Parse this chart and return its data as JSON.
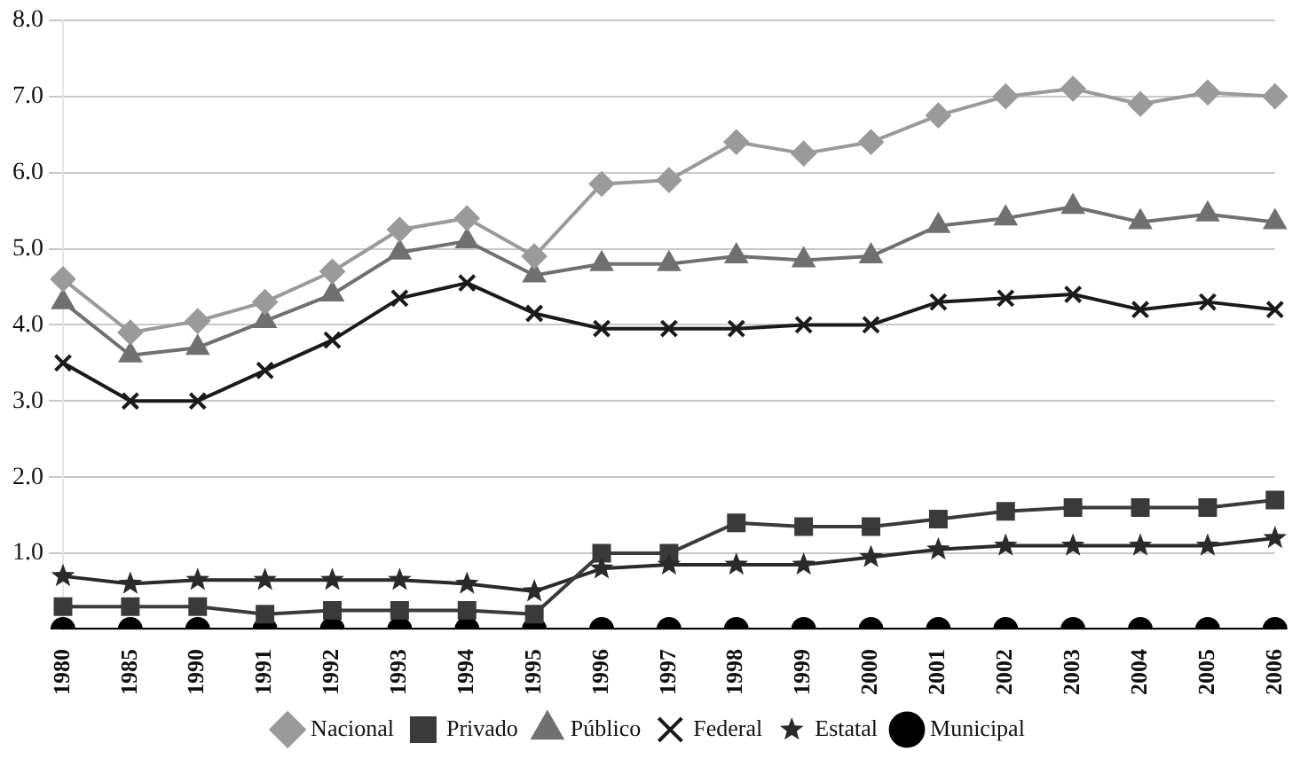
{
  "chart_data": {
    "type": "line",
    "categories": [
      "1980",
      "1985",
      "1990",
      "1991",
      "1992",
      "1993",
      "1994",
      "1995",
      "1996",
      "1997",
      "1998",
      "1999",
      "2000",
      "2001",
      "2002",
      "2003",
      "2004",
      "2005",
      "2006"
    ],
    "ylim": [
      0,
      8
    ],
    "yticks": [
      {
        "value": 1,
        "label": "1.0"
      },
      {
        "value": 2,
        "label": "2.0"
      },
      {
        "value": 3,
        "label": "3.0"
      },
      {
        "value": 4,
        "label": "4.0"
      },
      {
        "value": 5,
        "label": "5.0"
      },
      {
        "value": 6,
        "label": "6.0"
      },
      {
        "value": 7,
        "label": "7.0"
      },
      {
        "value": 8,
        "label": "8.0"
      }
    ],
    "grid": "y",
    "legend": "bottom",
    "line_style": "solid",
    "series": [
      {
        "name": "Nacional",
        "color": "#9a9a9a",
        "marker": "diamond",
        "values": [
          4.6,
          3.9,
          4.05,
          4.3,
          4.7,
          5.25,
          5.4,
          4.9,
          5.85,
          5.9,
          6.4,
          6.25,
          6.4,
          6.75,
          7.0,
          7.1,
          6.9,
          7.05,
          7.0
        ]
      },
      {
        "name": "Privado",
        "color": "#3a3a3a",
        "marker": "square",
        "values": [
          0.3,
          0.3,
          0.3,
          0.2,
          0.25,
          0.25,
          0.25,
          0.2,
          1.0,
          1.0,
          1.4,
          1.35,
          1.35,
          1.45,
          1.55,
          1.6,
          1.6,
          1.6,
          1.7
        ]
      },
      {
        "name": "Público",
        "color": "#707070",
        "marker": "triangle",
        "values": [
          4.3,
          3.6,
          3.7,
          4.05,
          4.4,
          4.95,
          5.1,
          4.65,
          4.8,
          4.8,
          4.9,
          4.85,
          4.9,
          5.3,
          5.4,
          5.55,
          5.35,
          5.45,
          5.35
        ]
      },
      {
        "name": "Federal",
        "color": "#1a1a1a",
        "marker": "cross",
        "values": [
          3.5,
          3.0,
          3.0,
          3.4,
          3.8,
          4.35,
          4.55,
          4.15,
          3.95,
          3.95,
          3.95,
          4.0,
          4.0,
          4.3,
          4.35,
          4.4,
          4.2,
          4.3,
          4.2
        ]
      },
      {
        "name": "Estatal",
        "color": "#2a2a2a",
        "marker": "star",
        "values": [
          0.7,
          0.6,
          0.65,
          0.65,
          0.65,
          0.65,
          0.6,
          0.5,
          0.8,
          0.85,
          0.85,
          0.85,
          0.95,
          1.05,
          1.1,
          1.1,
          1.1,
          1.1,
          1.2
        ]
      },
      {
        "name": "Municipal",
        "color": "#000000",
        "marker": "circle",
        "values": [
          0,
          0,
          0,
          0,
          0,
          0,
          0,
          0,
          0,
          0,
          0,
          0,
          0,
          0,
          0,
          0,
          0,
          0,
          0
        ]
      }
    ]
  }
}
